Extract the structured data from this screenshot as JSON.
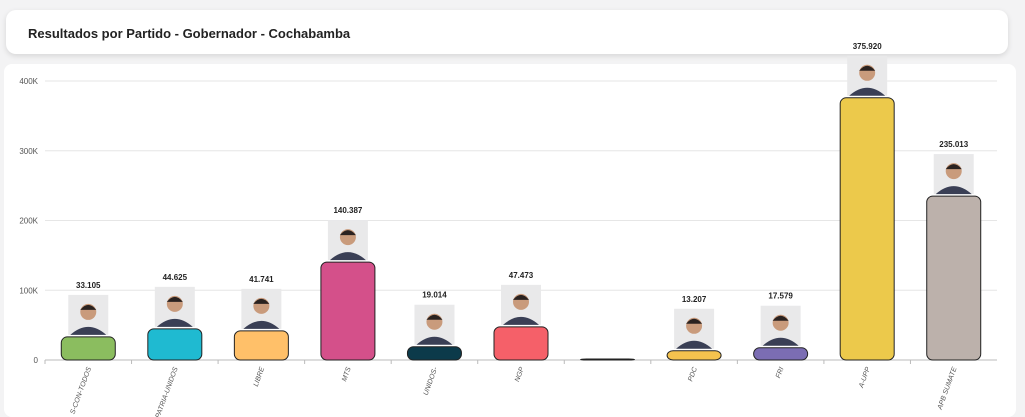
{
  "header": {
    "title": "Resultados por Partido - Gobernador - Cochabamba"
  },
  "chart_data": {
    "type": "bar",
    "title": "Resultados por Partido - Gobernador - Cochabamba",
    "xlabel": "",
    "ylabel": "",
    "ylim": [
      0,
      400000
    ],
    "yticks": [
      0,
      100000,
      200000,
      300000,
      400000
    ],
    "ytick_labels": [
      "0",
      "100K",
      "200K",
      "300K",
      "400K"
    ],
    "grid": true,
    "categories": [
      "S-CON-TODOS",
      "PATRIA-UNIDOS",
      "LIBRE",
      "MTS",
      "UNIDOS-",
      "NGP",
      "",
      "PDC",
      "FRI",
      "A-UPP",
      "APB SUMATE"
    ],
    "values": [
      33105,
      44625,
      41741,
      140387,
      19014,
      47473,
      0,
      13207,
      17579,
      375920,
      235013
    ],
    "value_labels": [
      "33.105",
      "44.625",
      "41.741",
      "140.387",
      "19.014",
      "47.473",
      "",
      "13.207",
      "17.579",
      "375.920",
      "235.013"
    ],
    "colors": [
      "#8bbd5f",
      "#1fbad1",
      "#ffc069",
      "#d4508a",
      "#0c3a4a",
      "#f56069",
      "#333333",
      "#f4c24e",
      "#7b6db3",
      "#ecc94b",
      "#bcb1ab"
    ]
  }
}
